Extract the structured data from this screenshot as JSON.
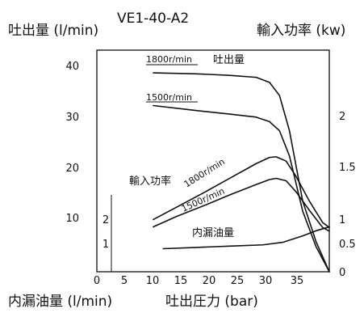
{
  "chart_data": {
    "type": "line",
    "title": "VE1-40-A2",
    "x_axis": {
      "label": "吐出圧力 (bar)",
      "range": [
        0,
        35
      ],
      "ticks": [
        "0",
        "5",
        "10",
        "15",
        "20",
        "25",
        "30",
        "35"
      ]
    },
    "flow_axis": {
      "label": "吐出量 (l/min)",
      "range": [
        0,
        44
      ],
      "ticks": [
        "10",
        "20",
        "30",
        "40"
      ]
    },
    "leak_axis": {
      "label": "内漏油量 (l/min)",
      "range": [
        0,
        3
      ],
      "ticks": [
        "1",
        "2"
      ]
    },
    "power_axis": {
      "label": "輸入功率 (kw)",
      "range": [
        0,
        2.5
      ],
      "ticks": [
        "0",
        "0.5",
        "1",
        "1.5",
        "2"
      ]
    },
    "annotations": {
      "flow": "吐出量",
      "power": "輸入功率",
      "leak": "内漏油量",
      "flow_1800": "1800r/min",
      "flow_1500": "1500r/min",
      "power_1800": "1800r/min",
      "power_1500": "1500r/min"
    },
    "series": [
      {
        "name": "1800r/min",
        "axis": "flow",
        "points": [
          [
            8.5,
            39.5
          ],
          [
            15,
            39.3
          ],
          [
            20,
            39.0
          ],
          [
            24,
            38.6
          ],
          [
            26,
            37.6
          ],
          [
            27.5,
            35.0
          ],
          [
            29,
            28.0
          ],
          [
            31,
            14.0
          ],
          [
            33,
            6.0
          ],
          [
            35,
            0.0
          ]
        ]
      },
      {
        "name": "1500r/min",
        "axis": "flow",
        "points": [
          [
            8.5,
            33.0
          ],
          [
            15,
            32.0
          ],
          [
            20,
            31.3
          ],
          [
            24,
            30.7
          ],
          [
            26,
            29.8
          ],
          [
            27.5,
            28.0
          ],
          [
            29,
            23.0
          ],
          [
            31,
            12.0
          ],
          [
            33,
            5.0
          ],
          [
            35,
            0.0
          ]
        ]
      },
      {
        "name": "1800r/min",
        "axis": "power",
        "points": [
          [
            8.5,
            0.85
          ],
          [
            12,
            1.05
          ],
          [
            16,
            1.28
          ],
          [
            20,
            1.52
          ],
          [
            24,
            1.76
          ],
          [
            26,
            1.86
          ],
          [
            27,
            1.87
          ],
          [
            28.5,
            1.8
          ],
          [
            30,
            1.55
          ],
          [
            32,
            1.15
          ],
          [
            34,
            0.8
          ],
          [
            35,
            0.72
          ]
        ]
      },
      {
        "name": "1500r/min",
        "axis": "power",
        "points": [
          [
            8.5,
            0.73
          ],
          [
            12,
            0.9
          ],
          [
            16,
            1.07
          ],
          [
            20,
            1.25
          ],
          [
            24,
            1.42
          ],
          [
            26,
            1.5
          ],
          [
            27,
            1.52
          ],
          [
            28.5,
            1.48
          ],
          [
            30,
            1.3
          ],
          [
            32,
            1.0
          ],
          [
            34,
            0.72
          ],
          [
            35,
            0.66
          ]
        ]
      },
      {
        "name": "内漏油量",
        "axis": "leak",
        "points": [
          [
            10,
            0.9
          ],
          [
            15,
            0.95
          ],
          [
            20,
            1.0
          ],
          [
            25,
            1.05
          ],
          [
            28,
            1.15
          ],
          [
            31,
            1.4
          ],
          [
            33,
            1.6
          ],
          [
            35,
            1.75
          ]
        ]
      }
    ]
  }
}
